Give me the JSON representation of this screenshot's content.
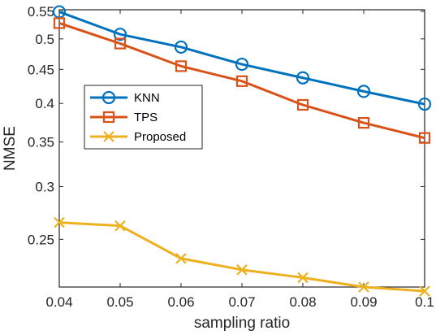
{
  "chart_data": {
    "type": "line",
    "xlabel": "sampling ratio",
    "ylabel": "NMSE",
    "x": [
      0.04,
      0.05,
      0.06,
      0.07,
      0.08,
      0.09,
      0.1
    ],
    "x_tick_labels": [
      "0.04",
      "0.05",
      "0.06",
      "0.07",
      "0.08",
      "0.09",
      "0.1"
    ],
    "xlim": [
      0.04,
      0.1
    ],
    "y_scale": "log",
    "ylim": [
      0.212,
      0.553
    ],
    "y_ticks": [
      0.25,
      0.3,
      0.35,
      0.4,
      0.45,
      0.5,
      0.55
    ],
    "y_tick_labels": [
      "0.25",
      "0.3",
      "0.35",
      "0.4",
      "0.45",
      "0.5",
      "0.55"
    ],
    "grid": false,
    "legend_position": "center-left",
    "series": [
      {
        "name": "KNN",
        "color": "#0072BD",
        "marker": "circle",
        "values": [
          0.549,
          0.508,
          0.486,
          0.458,
          0.437,
          0.417,
          0.399
        ]
      },
      {
        "name": "TPS",
        "color": "#D95319",
        "marker": "square",
        "values": [
          0.528,
          0.492,
          0.455,
          0.432,
          0.398,
          0.374,
          0.355
        ]
      },
      {
        "name": "Proposed",
        "color": "#EDB120",
        "marker": "x",
        "values": [
          0.265,
          0.262,
          0.234,
          0.225,
          0.219,
          0.212,
          0.209
        ]
      }
    ]
  }
}
